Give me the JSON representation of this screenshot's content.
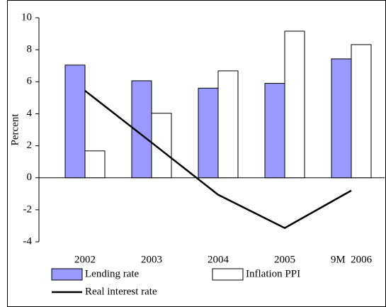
{
  "chart_data": {
    "type": "bar",
    "y_label": "Percent",
    "categories": [
      "2002",
      "2003",
      "2004",
      "2005",
      "9M  2006"
    ],
    "series": [
      {
        "name": "Lending rate",
        "type": "bar",
        "color": "#9999ff",
        "values": [
          7.04,
          6.06,
          5.6,
          5.9,
          7.43
        ]
      },
      {
        "name": "Inflation PPI",
        "type": "bar",
        "color": "#ffffff",
        "values": [
          1.68,
          4.03,
          6.68,
          9.16,
          8.32
        ]
      },
      {
        "name": "Real interest rate",
        "type": "line",
        "color": "#000000",
        "values": [
          5.44,
          2.2,
          -1.06,
          -3.14,
          -0.8
        ]
      }
    ],
    "ylim": [
      -4,
      10
    ],
    "yticks": [
      -4,
      -2,
      0,
      2,
      4,
      6,
      8,
      10
    ]
  }
}
